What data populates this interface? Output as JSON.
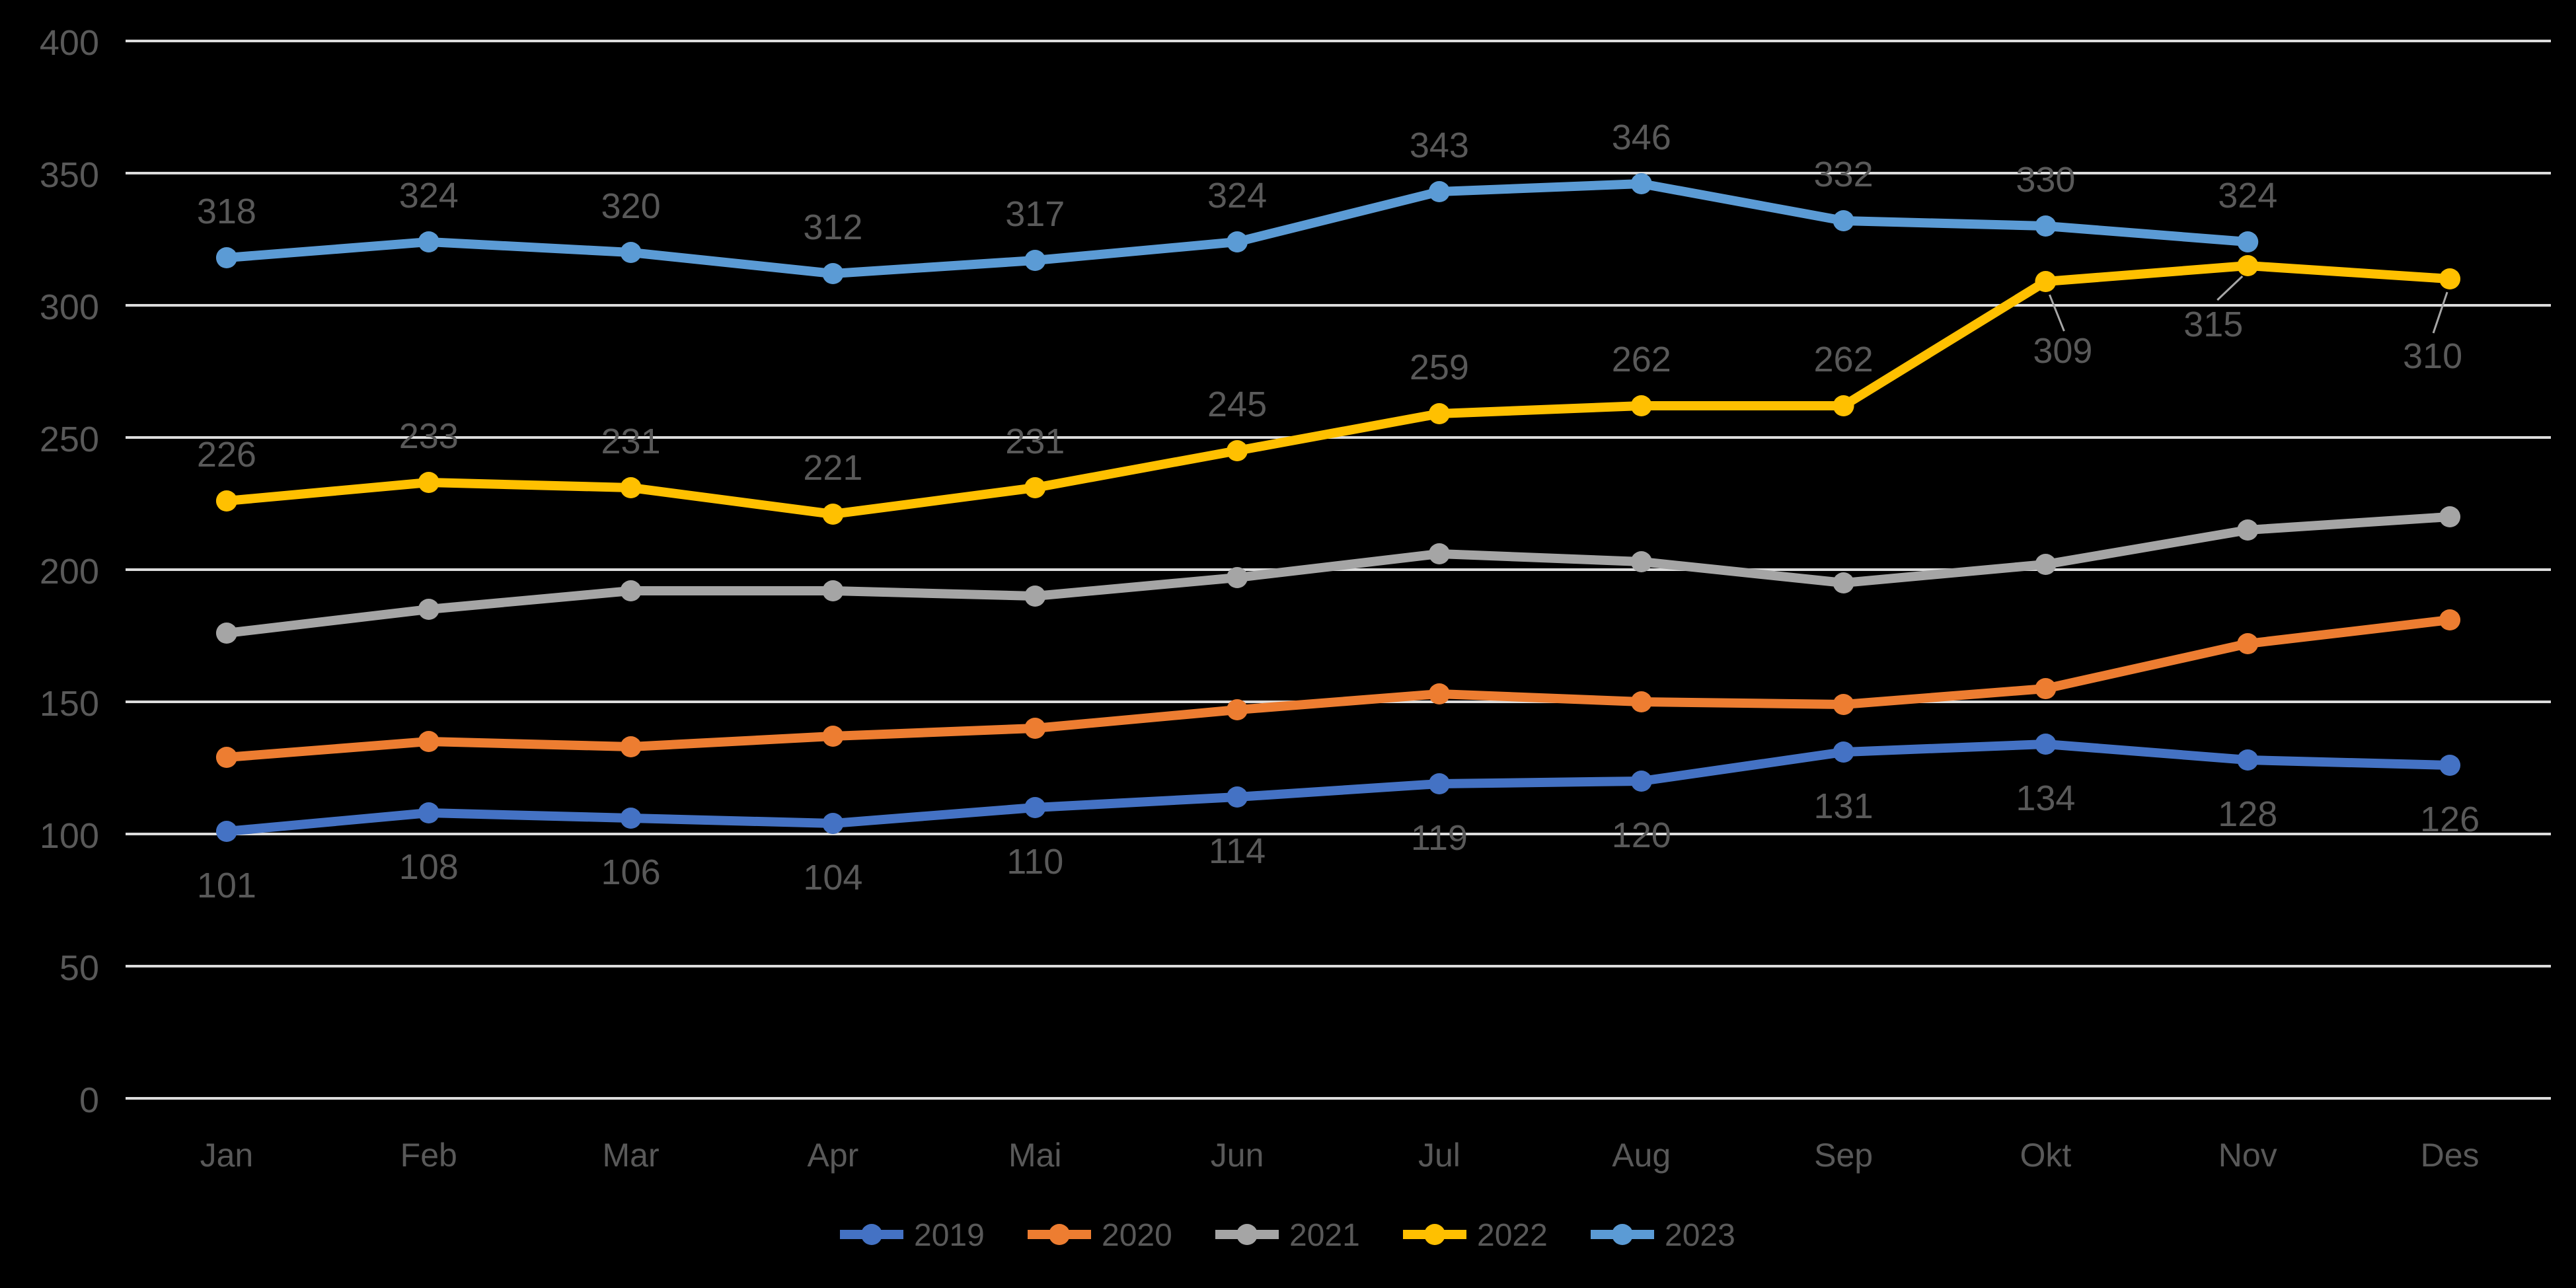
{
  "chart": {
    "background": "#000000",
    "gridline_color": "#DCDCDC",
    "axis_text_color": "#595959",
    "data_label_color": "#595959",
    "leader_line_color": "#A6A6A6",
    "legend_text_color": "#595959"
  },
  "chart_data": {
    "type": "line",
    "title": "",
    "xlabel": "",
    "ylabel": "",
    "categories": [
      "Jan",
      "Feb",
      "Mar",
      "Apr",
      "Mai",
      "Jun",
      "Jul",
      "Aug",
      "Sep",
      "Okt",
      "Nov",
      "Des"
    ],
    "yticks": [
      "0",
      "50",
      "100",
      "150",
      "200",
      "250",
      "300",
      "350",
      "400"
    ],
    "ylim": [
      0,
      400
    ],
    "ytick_step": 50,
    "grid": true,
    "legend_position": "bottom",
    "series": [
      {
        "name": "2019",
        "color": "#4472C4",
        "marker": "circle",
        "labels": "below",
        "values": [
          101,
          108,
          106,
          104,
          110,
          114,
          119,
          120,
          131,
          134,
          128,
          126
        ]
      },
      {
        "name": "2020",
        "color": "#ED7D31",
        "marker": "circle",
        "labels": "none",
        "values": [
          129,
          135,
          133,
          137,
          140,
          147,
          153,
          150,
          149,
          155,
          172,
          181
        ]
      },
      {
        "name": "2021",
        "color": "#A5A5A5",
        "marker": "circle",
        "labels": "none",
        "values": [
          176,
          185,
          192,
          192,
          190,
          197,
          206,
          203,
          195,
          202,
          215,
          220
        ]
      },
      {
        "name": "2022",
        "color": "#FFC000",
        "marker": "circle",
        "labels": "above",
        "values": [
          226,
          233,
          231,
          221,
          231,
          245,
          259,
          262,
          262,
          309,
          315,
          310
        ],
        "callout_indices": [
          9,
          10,
          11
        ]
      },
      {
        "name": "2023",
        "color": "#5B9BD5",
        "marker": "circle",
        "labels": "above",
        "values": [
          318,
          324,
          320,
          312,
          317,
          324,
          343,
          346,
          332,
          330,
          324,
          null
        ]
      }
    ]
  }
}
